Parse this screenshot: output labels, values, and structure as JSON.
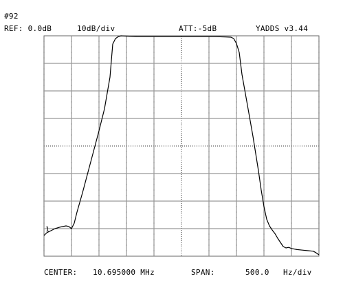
{
  "header": {
    "trace_number": "#92",
    "ref_label": "REF: 0.0dB",
    "scale_label": "10dB/div",
    "att_label": "ATT:-5dB",
    "app_version": "YADDS v3.44"
  },
  "footer": {
    "center_label": "CENTER:",
    "center_value": "10.695000 MHz",
    "span_label": "SPAN:",
    "span_value": "500.0",
    "span_unit": "Hz/div"
  },
  "marker": {
    "label": "1"
  },
  "chart_data": {
    "type": "line",
    "title": "",
    "xlabel": "",
    "ylabel": "",
    "x_unit": "Hz offset from center",
    "y_unit": "dB",
    "xlim": [
      -2500,
      2500
    ],
    "ylim": [
      -80,
      0
    ],
    "x_divisions": 10,
    "y_divisions": 8,
    "grid": true,
    "dotted_center_axes": true,
    "trace_color": "#000000",
    "grid_color": "#7f7f7f",
    "series": [
      {
        "x": [
          -2500,
          -2450,
          -2400,
          -2300,
          -2200,
          -2100,
          -2050,
          -2000,
          -1950,
          -1900,
          -1800,
          -1700,
          -1600,
          -1500,
          -1400,
          -1300,
          -1250,
          -1200,
          -1150,
          -1100,
          -1000,
          -800,
          -600,
          -400,
          -200,
          0,
          200,
          400,
          600,
          800,
          900,
          950,
          1000,
          1050,
          1100,
          1200,
          1300,
          1400,
          1450,
          1500,
          1550,
          1600,
          1650,
          1700,
          1750,
          1800,
          1850,
          1900,
          1950,
          2000,
          2100,
          2200,
          2300,
          2400,
          2450,
          2500
        ],
        "y": [
          -72.5,
          -71.5,
          -71,
          -70,
          -69.4,
          -69,
          -69.2,
          -70,
          -68,
          -64,
          -57,
          -49.5,
          -42,
          -34.5,
          -26.5,
          -15,
          -3,
          -1,
          -0.3,
          0,
          -0.1,
          -0.3,
          -0.3,
          -0.3,
          -0.3,
          -0.3,
          -0.3,
          -0.3,
          -0.3,
          -0.4,
          -0.5,
          -1,
          -2.8,
          -6,
          -14,
          -25.2,
          -36.5,
          -49,
          -56,
          -62,
          -66.6,
          -69,
          -70.5,
          -71.8,
          -73.5,
          -75,
          -76.5,
          -77,
          -76.8,
          -77.2,
          -77.6,
          -77.8,
          -78,
          -78.2,
          -78.8,
          -79.5
        ]
      }
    ]
  }
}
